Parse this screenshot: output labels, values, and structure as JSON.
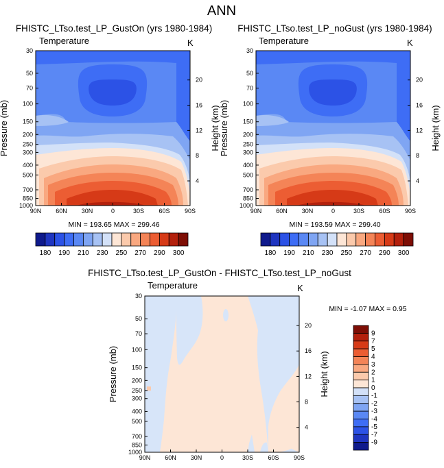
{
  "figure_title": "ANN",
  "chart_data": [
    {
      "type": "heatmap",
      "title": "FHISTC_LTso.test_LP_GustOn (yrs 1980-1984)",
      "variable": "Temperature",
      "units": "K",
      "ylabel": "Pressure (mb)",
      "ylabel_right": "Height (km)",
      "x_ticks": [
        "90N",
        "60N",
        "30N",
        "0",
        "30S",
        "60S",
        "90S"
      ],
      "y_ticks": [
        "30",
        "50",
        "70",
        "100",
        "150",
        "200",
        "250",
        "300",
        "400",
        "500",
        "700",
        "850",
        "1000"
      ],
      "height_ticks": [
        "20",
        "16",
        "12",
        "8",
        "4"
      ],
      "stats": "MIN = 193.65  MAX = 299.46",
      "colorbar_labels": [
        "180",
        "190",
        "210",
        "230",
        "250",
        "270",
        "290",
        "300"
      ]
    },
    {
      "type": "heatmap",
      "title": "FHISTC_LTso.test_LP_noGust (yrs 1980-1984)",
      "variable": "Temperature",
      "units": "K",
      "ylabel": "Pressure (mb)",
      "ylabel_right": "Height (km)",
      "x_ticks": [
        "90N",
        "60N",
        "30N",
        "0",
        "30S",
        "60S",
        "90S"
      ],
      "y_ticks": [
        "30",
        "50",
        "70",
        "100",
        "150",
        "200",
        "250",
        "300",
        "400",
        "500",
        "700",
        "850",
        "1000"
      ],
      "height_ticks": [
        "20",
        "16",
        "12",
        "8",
        "4"
      ],
      "stats": "MIN = 193.59  MAX = 299.40",
      "colorbar_labels": [
        "180",
        "190",
        "210",
        "230",
        "250",
        "270",
        "290",
        "300"
      ]
    },
    {
      "type": "heatmap",
      "title": "FHISTC_LTso.test_LP_GustOn - FHISTC_LTso.test_LP_noGust",
      "variable": "Temperature",
      "units": "K",
      "ylabel": "Pressure (mb)",
      "ylabel_right": "Height (km)",
      "x_ticks": [
        "90N",
        "60N",
        "30N",
        "0",
        "30S",
        "60S",
        "90S"
      ],
      "y_ticks": [
        "30",
        "50",
        "70",
        "100",
        "150",
        "200",
        "250",
        "300",
        "400",
        "500",
        "700",
        "850",
        "1000"
      ],
      "height_ticks": [
        "20",
        "16",
        "12",
        "8",
        "4"
      ],
      "stats": "MIN =  -1.07  MAX =   0.95",
      "colorbar_labels": [
        "9",
        "7",
        "5",
        "4",
        "3",
        "2",
        "1",
        "0",
        "-1",
        "-2",
        "-3",
        "-4",
        "-5",
        "-7",
        "-9"
      ]
    }
  ],
  "colors": {
    "temperature_scale": [
      "#0f1a8c",
      "#1f35c0",
      "#2c52e6",
      "#3e6df5",
      "#5a88f4",
      "#7fa5f3",
      "#a7c2f4",
      "#d3e1f8",
      "#fde6d6",
      "#fbcaac",
      "#f9a880",
      "#f48457",
      "#ec5d33",
      "#d63a17",
      "#b3200c",
      "#7e0e05"
    ],
    "diff_scale": [
      "#7e0e05",
      "#b3200c",
      "#d63a17",
      "#ec5d33",
      "#f48457",
      "#f9a880",
      "#fbcaac",
      "#fde6d6",
      "#d3e1f8",
      "#a7c2f4",
      "#7fa5f3",
      "#5a88f4",
      "#3e6df5",
      "#2c52e6",
      "#1f35c0",
      "#0f1a8c"
    ],
    "diff_positive": "#fde6d6",
    "diff_negative": "#d7e5f9"
  }
}
